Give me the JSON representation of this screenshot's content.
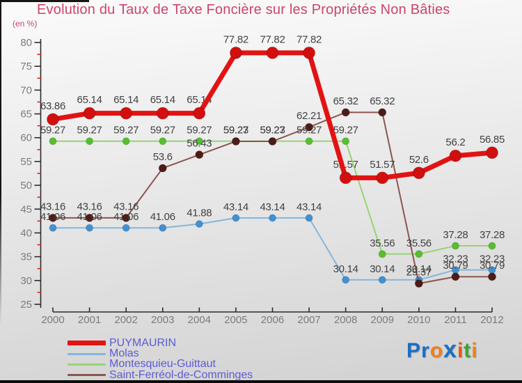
{
  "header": {
    "title": "Evolution du Taux de Taxe Foncière sur les Propriétés Non Bâties",
    "subtitle": "(en %)",
    "title_color": "#cc4468"
  },
  "chart_data": {
    "type": "line",
    "title": "Evolution du Taux de Taxe Foncière sur les Propriétés Non Bâties",
    "subtitle": "(en %)",
    "x": [
      2000,
      2001,
      2002,
      2003,
      2004,
      2005,
      2006,
      2007,
      2008,
      2009,
      2010,
      2011,
      2012
    ],
    "xlabel": "",
    "ylabel": "en %",
    "ylim": [
      25,
      80
    ],
    "y_major_step": 5,
    "y_minor_step": 2.5,
    "grid": false,
    "legend_position": "bottom-left",
    "series": [
      {
        "name": "PUYMAURIN",
        "line_color": "#e21313",
        "marker_color": "#d30e0e",
        "values": [
          63.86,
          65.14,
          65.14,
          65.14,
          65.14,
          77.82,
          77.82,
          77.82,
          51.57,
          51.57,
          52.6,
          56.2,
          56.85
        ]
      },
      {
        "name": "Molas",
        "line_color": "#85b6db",
        "marker_color": "#3e92d5",
        "values": [
          41.06,
          41.06,
          41.06,
          41.06,
          41.88,
          43.14,
          43.14,
          43.14,
          30.14,
          30.14,
          30.14,
          32.23,
          32.23
        ]
      },
      {
        "name": "Montesquieu-Guittaut",
        "line_color": "#97d472",
        "marker_color": "#54c12c",
        "values": [
          59.27,
          59.27,
          59.27,
          59.27,
          59.27,
          59.27,
          59.27,
          59.27,
          59.27,
          35.56,
          35.56,
          37.28,
          37.28
        ]
      },
      {
        "name": "Saint-Ferréol-de-Comminges",
        "line_color": "#8a564e",
        "marker_color": "#4e1b16",
        "values": [
          43.16,
          43.16,
          43.16,
          53.6,
          56.43,
          59.23,
          59.23,
          62.21,
          65.32,
          65.32,
          29.37,
          30.79,
          30.79
        ]
      }
    ]
  },
  "axis": {
    "y_tick_labels": [
      "25",
      "30",
      "35",
      "40",
      "45",
      "50",
      "55",
      "60",
      "65",
      "70",
      "75",
      "80"
    ],
    "x_tick_labels": [
      "2000",
      "2001",
      "2002",
      "2003",
      "2004",
      "2005",
      "2006",
      "2007",
      "2008",
      "2009",
      "2010",
      "2011",
      "2012"
    ],
    "axis_color": "#2b2b2b",
    "minor_tick_color": "#e82222",
    "tick_label_color": "#7b7b7b",
    "data_label_color": "#414141"
  },
  "legend": {
    "text_color": "#5b5bd6"
  },
  "logo": {
    "letters": [
      {
        "char": "P",
        "color": "#1a6fc4"
      },
      {
        "char": "r",
        "color": "#1a6fc4"
      },
      {
        "char": "o",
        "color": "#f08118"
      },
      {
        "char": "x",
        "color": "#1a6fc4"
      },
      {
        "char": "i",
        "color": "#e2571b"
      },
      {
        "char": "t",
        "color": "#3aa43a"
      },
      {
        "char": "i",
        "color": "#f08118"
      }
    ]
  }
}
